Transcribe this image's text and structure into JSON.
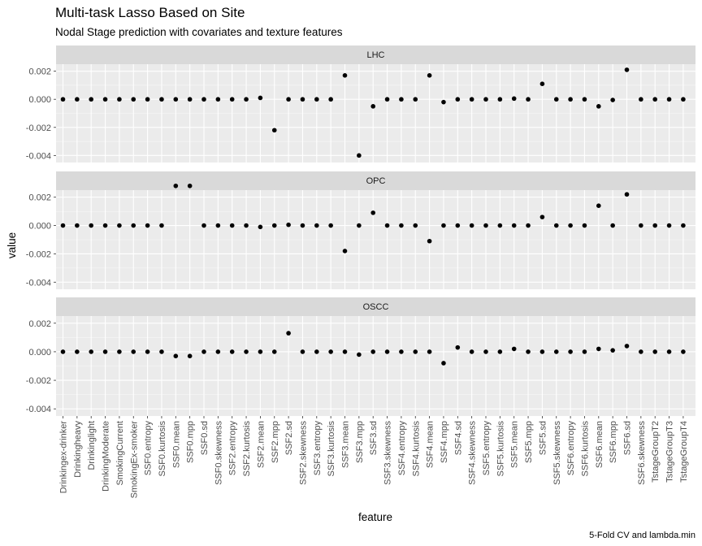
{
  "chart_data": {
    "type": "scatter",
    "title": "Multi-task Lasso Based on Site",
    "subtitle": "Nodal Stage prediction with covariates and texture features",
    "caption": "5-Fold CV and lambda.min",
    "xlabel": "feature",
    "ylabel": "value",
    "ylim": [
      -0.0045,
      0.0025
    ],
    "yticks": [
      0.002,
      0.0,
      -0.002,
      -0.004
    ],
    "ytick_labels": [
      "0.002",
      "0.000",
      "-0.002",
      "-0.004"
    ],
    "grid": true,
    "categories": [
      "Drinkingex-drinker",
      "Drinkingheavy",
      "Drinkinglight",
      "DrinkingModerate",
      "SmokingCurrent",
      "SmokingEx-smoker",
      "SSF0.entropy",
      "SSF0.kurtosis",
      "SSF0.mean",
      "SSF0.mpp",
      "SSF0.sd",
      "SSF0.skewness",
      "SSF2.entropy",
      "SSF2.kurtosis",
      "SSF2.mean",
      "SSF2.mpp",
      "SSF2.sd",
      "SSF2.skewness",
      "SSF3.entropy",
      "SSF3.kurtosis",
      "SSF3.mean",
      "SSF3.mpp",
      "SSF3.sd",
      "SSF3.skewness",
      "SSF4.entropy",
      "SSF4.kurtosis",
      "SSF4.mean",
      "SSF4.mpp",
      "SSF4.sd",
      "SSF4.skewness",
      "SSF5.entropy",
      "SSF5.kurtosis",
      "SSF5.mean",
      "SSF5.mpp",
      "SSF5.sd",
      "SSF5.skewness",
      "SSF6.entropy",
      "SSF6.kurtosis",
      "SSF6.mean",
      "SSF6.mpp",
      "SSF6.sd",
      "SSF6.skewness",
      "TstageGroupT2",
      "TstageGroupT3",
      "TstageGroupT4"
    ],
    "panels": [
      {
        "name": "LHC",
        "values": [
          0,
          0,
          0,
          0,
          0,
          0,
          0,
          0,
          0,
          0,
          0,
          0,
          0,
          0,
          0.0001,
          -0.0022,
          0,
          0,
          0,
          0,
          0.0017,
          -0.004,
          -0.0005,
          0,
          0,
          0,
          0.0017,
          -0.0002,
          0,
          0,
          0,
          0,
          5e-05,
          0,
          0.0011,
          0,
          0,
          0,
          -0.0005,
          -5e-05,
          0.0021,
          0,
          0,
          0,
          0
        ]
      },
      {
        "name": "OPC",
        "values": [
          0,
          0,
          0,
          0,
          0,
          0,
          0,
          0,
          0.0028,
          0.0028,
          0,
          0,
          0,
          0,
          -0.0001,
          0,
          5e-05,
          0,
          0,
          0,
          -0.0018,
          0,
          0.0009,
          0,
          0,
          0,
          -0.0011,
          0,
          0,
          0,
          0,
          0,
          0,
          0,
          0.0006,
          0,
          0,
          0,
          0.0014,
          0,
          0.0022,
          0,
          0,
          0,
          0
        ]
      },
      {
        "name": "OSCC",
        "values": [
          0,
          0,
          0,
          0,
          0,
          0,
          0,
          0,
          -0.0003,
          -0.0003,
          0,
          0,
          0,
          0,
          0,
          0,
          0.0013,
          0,
          0,
          0,
          0,
          -0.0002,
          0,
          0,
          0,
          0,
          0,
          -0.0008,
          0.0003,
          0,
          0,
          0,
          0.0002,
          0,
          0,
          0,
          0,
          0,
          0.0002,
          0.0001,
          0.0004,
          0,
          0,
          0,
          0
        ]
      }
    ]
  },
  "colors": {
    "panel_background": "#ebebeb",
    "strip_background": "#d9d9d9",
    "grid_major": "#ffffff",
    "point": "#000000"
  }
}
